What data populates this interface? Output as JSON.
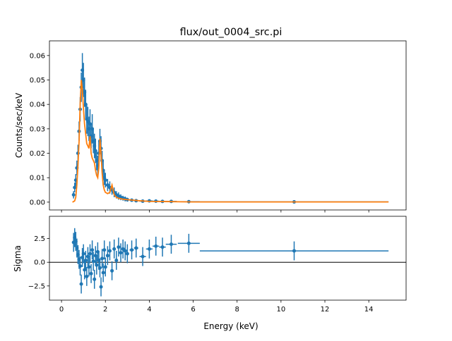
{
  "chart_data": [
    {
      "type": "scatter",
      "title": "flux/out_0004_src.pi",
      "xlabel": "",
      "ylabel": "Counts/sec/keV",
      "xlim": [
        -0.55,
        15.7
      ],
      "ylim": [
        -0.0032,
        0.066
      ],
      "xticks": [
        0,
        2,
        4,
        6,
        8,
        10,
        12,
        14
      ],
      "yticks": [
        0.0,
        0.01,
        0.02,
        0.03,
        0.04,
        0.05,
        0.06
      ],
      "ytick_labels": [
        "0.00",
        "0.01",
        "0.02",
        "0.03",
        "0.04",
        "0.05",
        "0.06"
      ],
      "grid": false,
      "colors": {
        "data": "#1f77b4",
        "model": "#ff7f0e"
      },
      "data": {
        "x": [
          0.55,
          0.6,
          0.65,
          0.7,
          0.75,
          0.8,
          0.85,
          0.9,
          0.95,
          1.0,
          1.05,
          1.1,
          1.15,
          1.2,
          1.25,
          1.3,
          1.35,
          1.4,
          1.45,
          1.5,
          1.55,
          1.6,
          1.65,
          1.7,
          1.75,
          1.8,
          1.85,
          1.9,
          1.95,
          2.0,
          2.1,
          2.2,
          2.3,
          2.4,
          2.5,
          2.6,
          2.7,
          2.8,
          2.9,
          3.0,
          3.2,
          3.4,
          3.7,
          4.0,
          4.3,
          4.6,
          5.0,
          5.8,
          10.6
        ],
        "xerr": [
          0.025,
          0.025,
          0.025,
          0.025,
          0.025,
          0.025,
          0.025,
          0.025,
          0.025,
          0.025,
          0.025,
          0.025,
          0.025,
          0.025,
          0.025,
          0.025,
          0.025,
          0.025,
          0.025,
          0.025,
          0.025,
          0.025,
          0.025,
          0.025,
          0.025,
          0.025,
          0.025,
          0.025,
          0.025,
          0.025,
          0.05,
          0.05,
          0.05,
          0.05,
          0.05,
          0.05,
          0.05,
          0.05,
          0.05,
          0.05,
          0.1,
          0.1,
          0.15,
          0.15,
          0.15,
          0.15,
          0.25,
          0.5,
          4.3
        ],
        "y": [
          0.003,
          0.006,
          0.009,
          0.014,
          0.02,
          0.029,
          0.038,
          0.047,
          0.054,
          0.05,
          0.045,
          0.04,
          0.034,
          0.033,
          0.03,
          0.032,
          0.027,
          0.03,
          0.025,
          0.023,
          0.021,
          0.017,
          0.015,
          0.02,
          0.025,
          0.022,
          0.017,
          0.013,
          0.01,
          0.009,
          0.007,
          0.006,
          0.005,
          0.004,
          0.003,
          0.0025,
          0.002,
          0.0016,
          0.0013,
          0.001,
          0.0008,
          0.0006,
          0.0004,
          0.0005,
          0.0004,
          0.0003,
          0.0003,
          0.0002,
          0.0001
        ],
        "yerr": [
          0.0015,
          0.002,
          0.0025,
          0.003,
          0.0035,
          0.004,
          0.005,
          0.006,
          0.007,
          0.007,
          0.006,
          0.006,
          0.006,
          0.006,
          0.005,
          0.006,
          0.005,
          0.006,
          0.005,
          0.005,
          0.005,
          0.004,
          0.004,
          0.005,
          0.005,
          0.005,
          0.004,
          0.004,
          0.003,
          0.003,
          0.0025,
          0.0025,
          0.002,
          0.002,
          0.0015,
          0.0015,
          0.0012,
          0.001,
          0.001,
          0.0008,
          0.0006,
          0.0005,
          0.0004,
          0.0004,
          0.0003,
          0.0003,
          0.0002,
          0.0002,
          0.0001
        ]
      },
      "model": {
        "x": [
          0.5,
          0.6,
          0.65,
          0.7,
          0.75,
          0.8,
          0.85,
          0.9,
          0.95,
          1.0,
          1.05,
          1.1,
          1.15,
          1.2,
          1.25,
          1.3,
          1.35,
          1.4,
          1.45,
          1.5,
          1.55,
          1.6,
          1.65,
          1.7,
          1.75,
          1.8,
          1.85,
          1.9,
          1.95,
          2.0,
          2.1,
          2.2,
          2.3,
          2.4,
          2.5,
          2.6,
          2.8,
          3.0,
          3.5,
          4.0,
          5.0,
          6.0,
          8.0,
          10.0,
          14.9
        ],
        "y": [
          0.0,
          0.0005,
          0.002,
          0.007,
          0.015,
          0.025,
          0.04,
          0.05,
          0.046,
          0.038,
          0.032,
          0.028,
          0.024,
          0.023,
          0.022,
          0.027,
          0.02,
          0.018,
          0.017,
          0.016,
          0.013,
          0.011,
          0.01,
          0.014,
          0.026,
          0.02,
          0.012,
          0.007,
          0.005,
          0.004,
          0.0035,
          0.004,
          0.007,
          0.003,
          0.002,
          0.0016,
          0.0012,
          0.001,
          0.0006,
          0.0003,
          0.0002,
          0.0001,
          0.0001,
          0.0001,
          0.0001
        ]
      }
    },
    {
      "type": "scatter",
      "title": "",
      "xlabel": "Energy (keV)",
      "ylabel": "Sigma",
      "xlim": [
        -0.55,
        15.7
      ],
      "ylim": [
        -4.0,
        4.85
      ],
      "xticks": [
        0,
        2,
        4,
        6,
        8,
        10,
        12,
        14
      ],
      "xtick_labels": [
        "0",
        "2",
        "4",
        "6",
        "8",
        "10",
        "12",
        "14"
      ],
      "yticks": [
        -2.5,
        0.0,
        2.5
      ],
      "ytick_labels": [
        "−2.5",
        "0.0",
        "2.5"
      ],
      "reference_line_y": 0,
      "grid": false,
      "colors": {
        "data": "#1f77b4",
        "reference": "#000000"
      },
      "residuals": [
        2.1,
        2.6,
        2.2,
        1.5,
        0.8,
        0.3,
        -0.4,
        -2.3,
        0.5,
        0.9,
        -0.8,
        0.2,
        -1.5,
        0.6,
        -0.5,
        0.9,
        -1.2,
        1.3,
        0.1,
        -1.8,
        0.7,
        -0.3,
        1.1,
        0.2,
        -0.6,
        -2.6,
        0.4,
        -1.1,
        1.3,
        -0.5,
        0.7,
        1.2,
        -0.9,
        1.4,
        0.2,
        1.6,
        1.0,
        1.4,
        1.2,
        0.9,
        1.3,
        1.5,
        0.6,
        1.4,
        1.7,
        1.6,
        1.9,
        2.0,
        1.2
      ],
      "residual_err": 1.0
    }
  ]
}
